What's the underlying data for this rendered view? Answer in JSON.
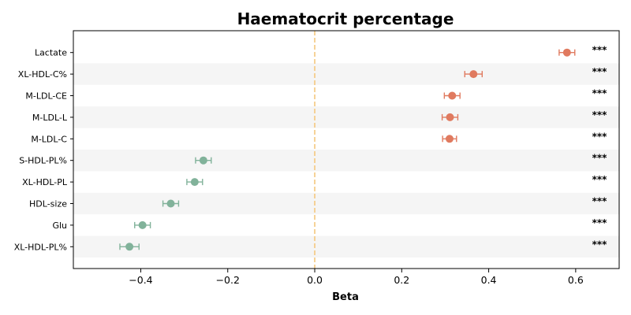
{
  "chart_data": {
    "type": "scatter",
    "title": "Haematocrit percentage",
    "xlabel": "Beta",
    "ylabel": "",
    "xlim": [
      -0.555,
      0.7
    ],
    "xticks": [
      -0.4,
      -0.2,
      0.0,
      0.2,
      0.4,
      0.6
    ],
    "xtick_labels": [
      "−0.4",
      "−0.2",
      "0.0",
      "0.2",
      "0.4",
      "0.6"
    ],
    "reference_line": 0.0,
    "reference_color": "#f5c77e",
    "positive_color": "#e07a5f",
    "negative_color": "#81b29a",
    "stripe_color": "#f5f5f5",
    "significance": "***",
    "points": [
      {
        "label": "Lactate",
        "beta": 0.58,
        "ci_low": 0.562,
        "ci_high": 0.598
      },
      {
        "label": "XL-HDL-C%",
        "beta": 0.365,
        "ci_low": 0.345,
        "ci_high": 0.385
      },
      {
        "label": "M-LDL-CE",
        "beta": 0.316,
        "ci_low": 0.298,
        "ci_high": 0.334
      },
      {
        "label": "M-LDL-L",
        "beta": 0.311,
        "ci_low": 0.293,
        "ci_high": 0.329
      },
      {
        "label": "M-LDL-C",
        "beta": 0.31,
        "ci_low": 0.294,
        "ci_high": 0.326
      },
      {
        "label": "S-HDL-PL%",
        "beta": -0.256,
        "ci_low": -0.274,
        "ci_high": -0.238
      },
      {
        "label": "XL-HDL-PL",
        "beta": -0.276,
        "ci_low": -0.294,
        "ci_high": -0.258
      },
      {
        "label": "HDL-size",
        "beta": -0.331,
        "ci_low": -0.349,
        "ci_high": -0.313
      },
      {
        "label": "Glu",
        "beta": -0.396,
        "ci_low": -0.414,
        "ci_high": -0.378
      },
      {
        "label": "XL-HDL-PL%",
        "beta": -0.426,
        "ci_low": -0.448,
        "ci_high": -0.404
      }
    ]
  }
}
